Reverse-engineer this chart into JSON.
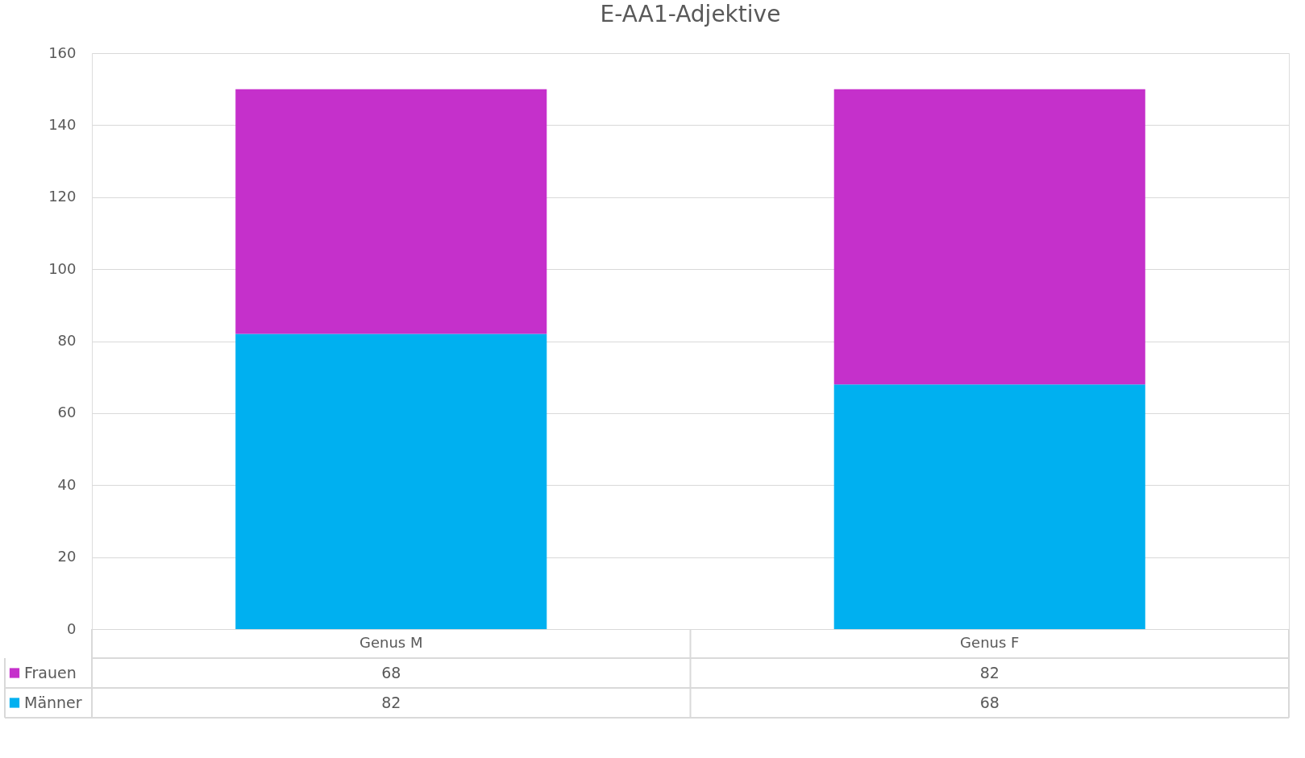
{
  "chart_data": {
    "type": "bar",
    "title": "E-AA1-Adjektive",
    "categories": [
      "Genus M",
      "Genus F"
    ],
    "stacked": true,
    "series": [
      {
        "name": "Männer",
        "color": "#00b0f0",
        "values": [
          82,
          68
        ]
      },
      {
        "name": "Frauen",
        "color": "#c530cb",
        "values": [
          68,
          82
        ]
      }
    ],
    "ylim": [
      0,
      160
    ],
    "yticks": [
      0,
      20,
      40,
      60,
      80,
      100,
      120,
      140,
      160
    ],
    "grid": "y",
    "legend": "bottom",
    "data_labels": true
  }
}
